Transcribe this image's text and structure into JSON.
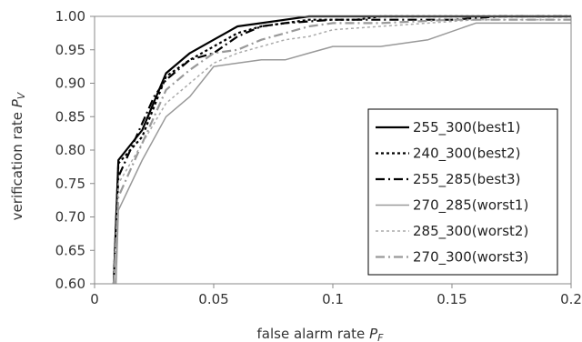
{
  "chart_data": {
    "type": "line",
    "xlabel": "false alarm rate",
    "xlabel_symbol": "P",
    "xlabel_subscript": "F",
    "ylabel": "verification rate",
    "ylabel_symbol": "P",
    "ylabel_subscript": "V",
    "xlim": [
      0,
      0.2
    ],
    "ylim": [
      0.6,
      1.0
    ],
    "xticks": [
      "0",
      "0.05",
      "0.1",
      "0.15",
      "0.2"
    ],
    "yticks": [
      "0.60",
      "0.65",
      "0.70",
      "0.75",
      "0.80",
      "0.85",
      "0.90",
      "0.95",
      "1.00"
    ],
    "grid": false,
    "legend_position": "right",
    "series": [
      {
        "name": "255_300(best1)",
        "color": "#000000",
        "dash": "solid",
        "width": "bold",
        "x": [
          0.008,
          0.01,
          0.02,
          0.03,
          0.04,
          0.05,
          0.06,
          0.07,
          0.08,
          0.09,
          0.1,
          0.2
        ],
        "y": [
          0.6,
          0.785,
          0.83,
          0.915,
          0.945,
          0.965,
          0.985,
          0.99,
          0.995,
          1.0,
          1.0,
          1.0
        ]
      },
      {
        "name": "240_300(best2)",
        "color": "#000000",
        "dash": "dot",
        "width": "bold",
        "x": [
          0.008,
          0.01,
          0.02,
          0.03,
          0.04,
          0.05,
          0.06,
          0.07,
          0.08,
          0.09,
          0.1,
          0.11,
          0.12,
          0.15,
          0.16,
          0.2
        ],
        "y": [
          0.6,
          0.78,
          0.82,
          0.91,
          0.935,
          0.955,
          0.975,
          0.985,
          0.99,
          0.995,
          0.995,
          0.995,
          1.0,
          1.0,
          1.0,
          1.0
        ]
      },
      {
        "name": "255_285(best3)",
        "color": "#000000",
        "dash": "dashdot",
        "width": "bold",
        "x": [
          0.008,
          0.01,
          0.02,
          0.025,
          0.03,
          0.04,
          0.05,
          0.06,
          0.07,
          0.08,
          0.1,
          0.15,
          0.17,
          0.2
        ],
        "y": [
          0.6,
          0.76,
          0.84,
          0.88,
          0.905,
          0.935,
          0.945,
          0.97,
          0.985,
          0.99,
          0.995,
          0.995,
          1.0,
          1.0
        ]
      },
      {
        "name": "270_285(worst1)",
        "color": "#999999",
        "dash": "solid",
        "width": "thin",
        "x": [
          0.009,
          0.01,
          0.02,
          0.03,
          0.04,
          0.05,
          0.06,
          0.07,
          0.08,
          0.09,
          0.1,
          0.12,
          0.14,
          0.16,
          0.17,
          0.2
        ],
        "y": [
          0.6,
          0.71,
          0.785,
          0.85,
          0.88,
          0.925,
          0.93,
          0.935,
          0.935,
          0.945,
          0.955,
          0.955,
          0.965,
          0.99,
          0.99,
          0.99
        ]
      },
      {
        "name": "285_300(worst2)",
        "color": "#aaaaaa",
        "dash": "dot",
        "width": "thin",
        "x": [
          0.008,
          0.01,
          0.02,
          0.03,
          0.04,
          0.05,
          0.06,
          0.07,
          0.08,
          0.09,
          0.1,
          0.12,
          0.14,
          0.16,
          0.18,
          0.2
        ],
        "y": [
          0.6,
          0.75,
          0.81,
          0.87,
          0.9,
          0.93,
          0.945,
          0.955,
          0.965,
          0.97,
          0.98,
          0.985,
          0.99,
          0.995,
          0.995,
          0.995
        ]
      },
      {
        "name": "270_300(worst3)",
        "color": "#999999",
        "dash": "dashdot",
        "width": "bold",
        "x": [
          0.008,
          0.01,
          0.02,
          0.03,
          0.04,
          0.05,
          0.06,
          0.07,
          0.08,
          0.09,
          0.1,
          0.11,
          0.12,
          0.15,
          0.2
        ],
        "y": [
          0.6,
          0.73,
          0.81,
          0.89,
          0.92,
          0.945,
          0.95,
          0.965,
          0.975,
          0.985,
          0.99,
          0.99,
          0.99,
          0.995,
          0.995
        ]
      }
    ]
  }
}
